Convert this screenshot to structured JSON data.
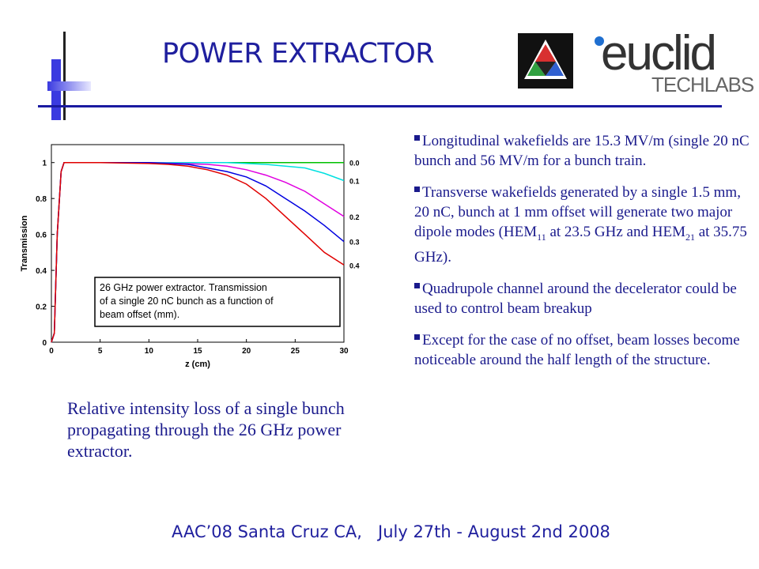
{
  "title": "POWER EXTRACTOR",
  "logo": {
    "brand": "euclid",
    "subtitle": "TECHLABS"
  },
  "caption": "Relative intensity loss of a single bunch propagating through the 26 GHz power extractor.",
  "bullets": [
    [
      "Longitudinal wakefields are 15.3 MV/m (single 20 nC bunch and 56 MV/m for a bunch train."
    ],
    [
      "Transverse wakefields generated by a single 1.5 mm, 20 nC,  bunch at 1 mm offset will generate two major dipole modes (HEM",
      "11",
      " at 23.5 GHz and HEM",
      "21",
      " at 35.75 GHz)."
    ],
    [
      "Quadrupole channel around the decelerator could be used to control beam breakup"
    ],
    [
      "Except for the case of no offset, beam losses become noticeable around the half length of the structure."
    ]
  ],
  "footer": "AAC’08 Santa Cruz CA,   July 27th - August 2nd 2008",
  "colors": {
    "title": "#1f1f9e",
    "text": "#1a1a8c",
    "accent_bar": "#4040e0",
    "rule": "#1a1aa0"
  },
  "chart_data": {
    "type": "line",
    "xlabel": "z (cm)",
    "ylabel": "Transmission",
    "xlim": [
      0,
      30
    ],
    "ylim": [
      0,
      1.1
    ],
    "xticks": [
      "0",
      "5",
      "10",
      "15",
      "20",
      "25",
      "30"
    ],
    "yticks": [
      "0",
      "0.2",
      "0.4",
      "0.6",
      "0.8",
      "1"
    ],
    "annotation": [
      "26 GHz power extractor. Transmission",
      "of a single 20 nC bunch as a function of",
      "beam offset (mm)."
    ],
    "series": [
      {
        "name": "0.0",
        "color": "#00c000",
        "x": [
          0,
          0.3,
          0.6,
          1.0,
          1.3,
          5,
          10,
          15,
          20,
          25,
          30
        ],
        "y": [
          0,
          0.05,
          0.6,
          0.95,
          1.0,
          1.0,
          1.0,
          1.0,
          1.0,
          1.0,
          1.0
        ]
      },
      {
        "name": "0.1",
        "color": "#00e0e0",
        "x": [
          0,
          0.3,
          0.6,
          1.0,
          1.3,
          5,
          10,
          15,
          18,
          20,
          22,
          24,
          26,
          28,
          30
        ],
        "y": [
          0,
          0.05,
          0.6,
          0.95,
          1.0,
          1.0,
          1.0,
          1.0,
          1.0,
          0.995,
          0.99,
          0.98,
          0.97,
          0.94,
          0.9
        ]
      },
      {
        "name": "0.2",
        "color": "#e000e0",
        "x": [
          0,
          0.3,
          0.6,
          1.0,
          1.3,
          5,
          10,
          13,
          16,
          18,
          20,
          22,
          24,
          26,
          28,
          30
        ],
        "y": [
          0,
          0.05,
          0.6,
          0.95,
          1.0,
          1.0,
          1.0,
          0.995,
          0.99,
          0.98,
          0.96,
          0.93,
          0.89,
          0.84,
          0.77,
          0.7
        ]
      },
      {
        "name": "0.3",
        "color": "#0000e0",
        "x": [
          0,
          0.3,
          0.6,
          1.0,
          1.3,
          5,
          10,
          12,
          14,
          16,
          18,
          20,
          22,
          24,
          26,
          28,
          30
        ],
        "y": [
          0,
          0.05,
          0.6,
          0.95,
          1.0,
          1.0,
          1.0,
          0.995,
          0.99,
          0.97,
          0.95,
          0.92,
          0.87,
          0.8,
          0.73,
          0.65,
          0.56
        ]
      },
      {
        "name": "0.4",
        "color": "#e00000",
        "x": [
          0,
          0.3,
          0.6,
          1.0,
          1.3,
          5,
          10,
          12,
          14,
          16,
          18,
          20,
          22,
          24,
          26,
          28,
          30
        ],
        "y": [
          0,
          0.05,
          0.6,
          0.95,
          1.0,
          1.0,
          0.995,
          0.99,
          0.98,
          0.96,
          0.93,
          0.88,
          0.8,
          0.7,
          0.6,
          0.5,
          0.43
        ]
      }
    ]
  }
}
